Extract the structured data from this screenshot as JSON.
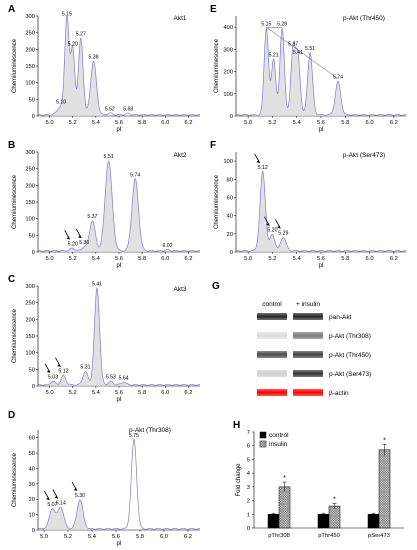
{
  "figure": {
    "panels": [
      {
        "letter": "A",
        "title": "Akt1",
        "ylabel": "Chemiluminescence",
        "xlabel": "pI",
        "xlim": [
          4.9,
          6.3
        ],
        "ylim": [
          0,
          300
        ],
        "xticks": [
          "5.0",
          "5.2",
          "5.4",
          "5.6",
          "5.8",
          "6.0",
          "6.2"
        ],
        "yticks": [
          "0",
          "50",
          "100",
          "150",
          "200",
          "250",
          "300"
        ],
        "peaks": [
          {
            "x": 5.1,
            "y": 25,
            "w": 0.03
          },
          {
            "x": 5.15,
            "y": 290,
            "w": 0.018
          },
          {
            "x": 5.2,
            "y": 200,
            "w": 0.018
          },
          {
            "x": 5.27,
            "y": 230,
            "w": 0.02
          },
          {
            "x": 5.38,
            "y": 160,
            "w": 0.025
          },
          {
            "x": 5.52,
            "y": 5,
            "w": 0.02
          },
          {
            "x": 5.68,
            "y": 4,
            "w": 0.02
          }
        ],
        "labels": [
          {
            "text": "5.10",
            "x": 5.1,
            "y": 25
          },
          {
            "text": "5.15",
            "x": 5.15,
            "y": 290
          },
          {
            "text": "5.20",
            "x": 5.2,
            "y": 200
          },
          {
            "text": "5.27",
            "x": 5.27,
            "y": 230
          },
          {
            "text": "5.38",
            "x": 5.38,
            "y": 160
          },
          {
            "text": "5.52",
            "x": 5.52,
            "y": 5
          },
          {
            "text": "5.68",
            "x": 5.68,
            "y": 4
          }
        ],
        "arrows": [],
        "shade": [
          5.0,
          5.45
        ]
      },
      {
        "letter": "B",
        "title": "Akt2",
        "ylabel": "Chemiluminescence",
        "xlabel": "pI",
        "xlim": [
          4.9,
          6.3
        ],
        "ylim": [
          0,
          300
        ],
        "xticks": [
          "5.0",
          "5.2",
          "5.4",
          "5.6",
          "5.8",
          "6.0",
          "6.2"
        ],
        "yticks": [
          "0",
          "50",
          "100",
          "150",
          "200",
          "250",
          "300"
        ],
        "peaks": [
          {
            "x": 5.2,
            "y": 8,
            "w": 0.02
          },
          {
            "x": 5.3,
            "y": 12,
            "w": 0.02
          },
          {
            "x": 5.37,
            "y": 90,
            "w": 0.025
          },
          {
            "x": 5.51,
            "y": 270,
            "w": 0.03
          },
          {
            "x": 5.74,
            "y": 215,
            "w": 0.028
          },
          {
            "x": 6.02,
            "y": 3,
            "w": 0.02
          }
        ],
        "labels": [
          {
            "text": "5.20",
            "x": 5.2,
            "y": 8
          },
          {
            "text": "5.30",
            "x": 5.3,
            "y": 12
          },
          {
            "text": "5.37",
            "x": 5.37,
            "y": 90
          },
          {
            "text": "5.51",
            "x": 5.51,
            "y": 270
          },
          {
            "text": "5.74",
            "x": 5.74,
            "y": 215
          },
          {
            "text": "6.02",
            "x": 6.02,
            "y": 3
          }
        ],
        "arrows": [
          {
            "x": 5.2,
            "y": 8
          },
          {
            "x": 5.3,
            "y": 12
          }
        ],
        "shade": [
          5.1,
          5.85
        ]
      },
      {
        "letter": "C",
        "title": "Akt3",
        "ylabel": "Chemiluminescence",
        "xlabel": "pI",
        "xlim": [
          4.9,
          6.3
        ],
        "ylim": [
          0,
          300
        ],
        "xticks": [
          "5.0",
          "5.2",
          "5.4",
          "5.6",
          "5.8",
          "6.0",
          "6.2"
        ],
        "yticks": [
          "0",
          "50",
          "100",
          "150",
          "200",
          "250",
          "300"
        ],
        "peaks": [
          {
            "x": 5.03,
            "y": 10,
            "w": 0.02
          },
          {
            "x": 5.12,
            "y": 28,
            "w": 0.02
          },
          {
            "x": 5.31,
            "y": 40,
            "w": 0.022
          },
          {
            "x": 5.41,
            "y": 290,
            "w": 0.022
          },
          {
            "x": 5.53,
            "y": 10,
            "w": 0.02
          },
          {
            "x": 5.64,
            "y": 8,
            "w": 0.02
          }
        ],
        "labels": [
          {
            "text": "5.03",
            "x": 5.03,
            "y": 10
          },
          {
            "text": "5.12",
            "x": 5.12,
            "y": 28
          },
          {
            "text": "5.31",
            "x": 5.31,
            "y": 40
          },
          {
            "text": "5.41",
            "x": 5.41,
            "y": 290
          },
          {
            "text": "5.53",
            "x": 5.53,
            "y": 10
          },
          {
            "text": "5.64",
            "x": 5.64,
            "y": 8
          }
        ],
        "arrows": [
          {
            "x": 5.03,
            "y": 10
          },
          {
            "x": 5.12,
            "y": 28
          }
        ],
        "shade": [
          5.0,
          5.7
        ]
      },
      {
        "letter": "D",
        "title": "p-Akt (Thr308)",
        "ylabel": "Chemiluminescence",
        "xlabel": "pI",
        "xlim": [
          4.95,
          6.3
        ],
        "ylim": [
          0,
          65
        ],
        "xticks": [
          "5.0",
          "5.2",
          "5.4",
          "5.6",
          "5.8",
          "6.0",
          "6.2"
        ],
        "yticks": [
          "0",
          "10",
          "20",
          "30",
          "40",
          "50",
          "60"
        ],
        "peaks": [
          {
            "x": 5.07,
            "y": 13,
            "w": 0.025
          },
          {
            "x": 5.14,
            "y": 14,
            "w": 0.025
          },
          {
            "x": 5.3,
            "y": 19,
            "w": 0.025
          },
          {
            "x": 5.75,
            "y": 58,
            "w": 0.022
          }
        ],
        "labels": [
          {
            "text": "5.07",
            "x": 5.07,
            "y": 13
          },
          {
            "text": "5.14",
            "x": 5.14,
            "y": 14
          },
          {
            "text": "5.30",
            "x": 5.3,
            "y": 19
          },
          {
            "text": "5.75",
            "x": 5.75,
            "y": 58
          }
        ],
        "arrows": [
          {
            "x": 5.07,
            "y": 13
          },
          {
            "x": 5.14,
            "y": 14
          },
          {
            "x": 5.3,
            "y": 19
          }
        ],
        "shade": [
          5.0,
          5.35
        ]
      },
      {
        "letter": "E",
        "title": "p-Akt (Thr450)",
        "ylabel": "Chemiluminescence",
        "xlabel": "pI",
        "xlim": [
          4.9,
          6.3
        ],
        "ylim": [
          0,
          450
        ],
        "xticks": [
          "5.0",
          "5.2",
          "5.4",
          "5.6",
          "5.8",
          "6.0",
          "6.2"
        ],
        "yticks": [
          "0",
          "100",
          "200",
          "300",
          "400"
        ],
        "peaks": [
          {
            "x": 5.15,
            "y": 390,
            "w": 0.018
          },
          {
            "x": 5.21,
            "y": 250,
            "w": 0.018
          },
          {
            "x": 5.28,
            "y": 390,
            "w": 0.018
          },
          {
            "x": 5.37,
            "y": 300,
            "w": 0.018
          },
          {
            "x": 5.41,
            "y": 260,
            "w": 0.018
          },
          {
            "x": 5.51,
            "y": 280,
            "w": 0.02
          },
          {
            "x": 5.74,
            "y": 150,
            "w": 0.022
          }
        ],
        "labels": [
          {
            "text": "5.15",
            "x": 5.15,
            "y": 390
          },
          {
            "text": "5.21",
            "x": 5.21,
            "y": 250
          },
          {
            "text": "5.28",
            "x": 5.28,
            "y": 390
          },
          {
            "text": "5.37",
            "x": 5.37,
            "y": 300
          },
          {
            "text": "5.41",
            "x": 5.41,
            "y": 260
          },
          {
            "text": "5.51",
            "x": 5.51,
            "y": 280
          },
          {
            "text": "5.74",
            "x": 5.74,
            "y": 150
          }
        ],
        "arrows": [],
        "shade": [
          5.05,
          5.8
        ]
      },
      {
        "letter": "F",
        "title": "p-Akt (Ser473)",
        "ylabel": "Chemiluminescence",
        "xlabel": "pI",
        "xlim": [
          4.9,
          6.3
        ],
        "ylim": [
          0,
          110
        ],
        "xticks": [
          "5.0",
          "5.2",
          "5.4",
          "5.6",
          "5.8",
          "6.0",
          "6.2"
        ],
        "yticks": [
          "0",
          "20",
          "40",
          "60",
          "80",
          "100"
        ],
        "peaks": [
          {
            "x": 5.12,
            "y": 87,
            "w": 0.022
          },
          {
            "x": 5.2,
            "y": 18,
            "w": 0.02
          },
          {
            "x": 5.29,
            "y": 15,
            "w": 0.022
          }
        ],
        "labels": [
          {
            "text": "5.12",
            "x": 5.12,
            "y": 87
          },
          {
            "text": "5.20",
            "x": 5.2,
            "y": 18
          },
          {
            "text": "5.29",
            "x": 5.29,
            "y": 15
          }
        ],
        "arrows": [
          {
            "x": 5.12,
            "y": 87
          },
          {
            "x": 5.2,
            "y": 18
          },
          {
            "x": 5.29,
            "y": 15
          }
        ],
        "shade": [
          5.0,
          5.4
        ]
      }
    ],
    "blot": {
      "letter": "G",
      "columns": [
        "control",
        "+ insulin"
      ],
      "rows": [
        {
          "label": "pan-Akt",
          "control": 0.9,
          "insulin": 0.9,
          "color": "#111111"
        },
        {
          "label": "p-Akt (Thr308)",
          "control": 0.15,
          "insulin": 0.55,
          "color": "#111111"
        },
        {
          "label": "p-Akt (Thr450)",
          "control": 0.75,
          "insulin": 0.8,
          "color": "#111111"
        },
        {
          "label": "p-Akt (Ser473)",
          "control": 0.2,
          "insulin": 0.85,
          "color": "#111111"
        },
        {
          "label": "β-actin",
          "control": 0.95,
          "insulin": 0.95,
          "color": "#ff0000"
        }
      ]
    },
    "bar_panel": {
      "letter": "H"
    }
  },
  "chart_data": {
    "type": "bar",
    "categories": [
      "pThr308",
      "pThr450",
      "pSer473"
    ],
    "series": [
      {
        "name": "control",
        "values": [
          1.0,
          1.0,
          1.0
        ],
        "errors": [
          0.07,
          0.08,
          0.08
        ],
        "color": "#000000"
      },
      {
        "name": "insulin",
        "values": [
          3.0,
          1.6,
          5.7
        ],
        "errors": [
          0.35,
          0.2,
          0.4
        ],
        "pattern": "crosshatch"
      }
    ],
    "ylabel": "Fold change",
    "ylim": [
      0,
      7
    ],
    "yticks": [
      "0",
      "1",
      "2",
      "3",
      "4",
      "5",
      "6",
      "7"
    ],
    "significance": [
      "*",
      "*",
      "*"
    ],
    "legend": "top-left"
  }
}
